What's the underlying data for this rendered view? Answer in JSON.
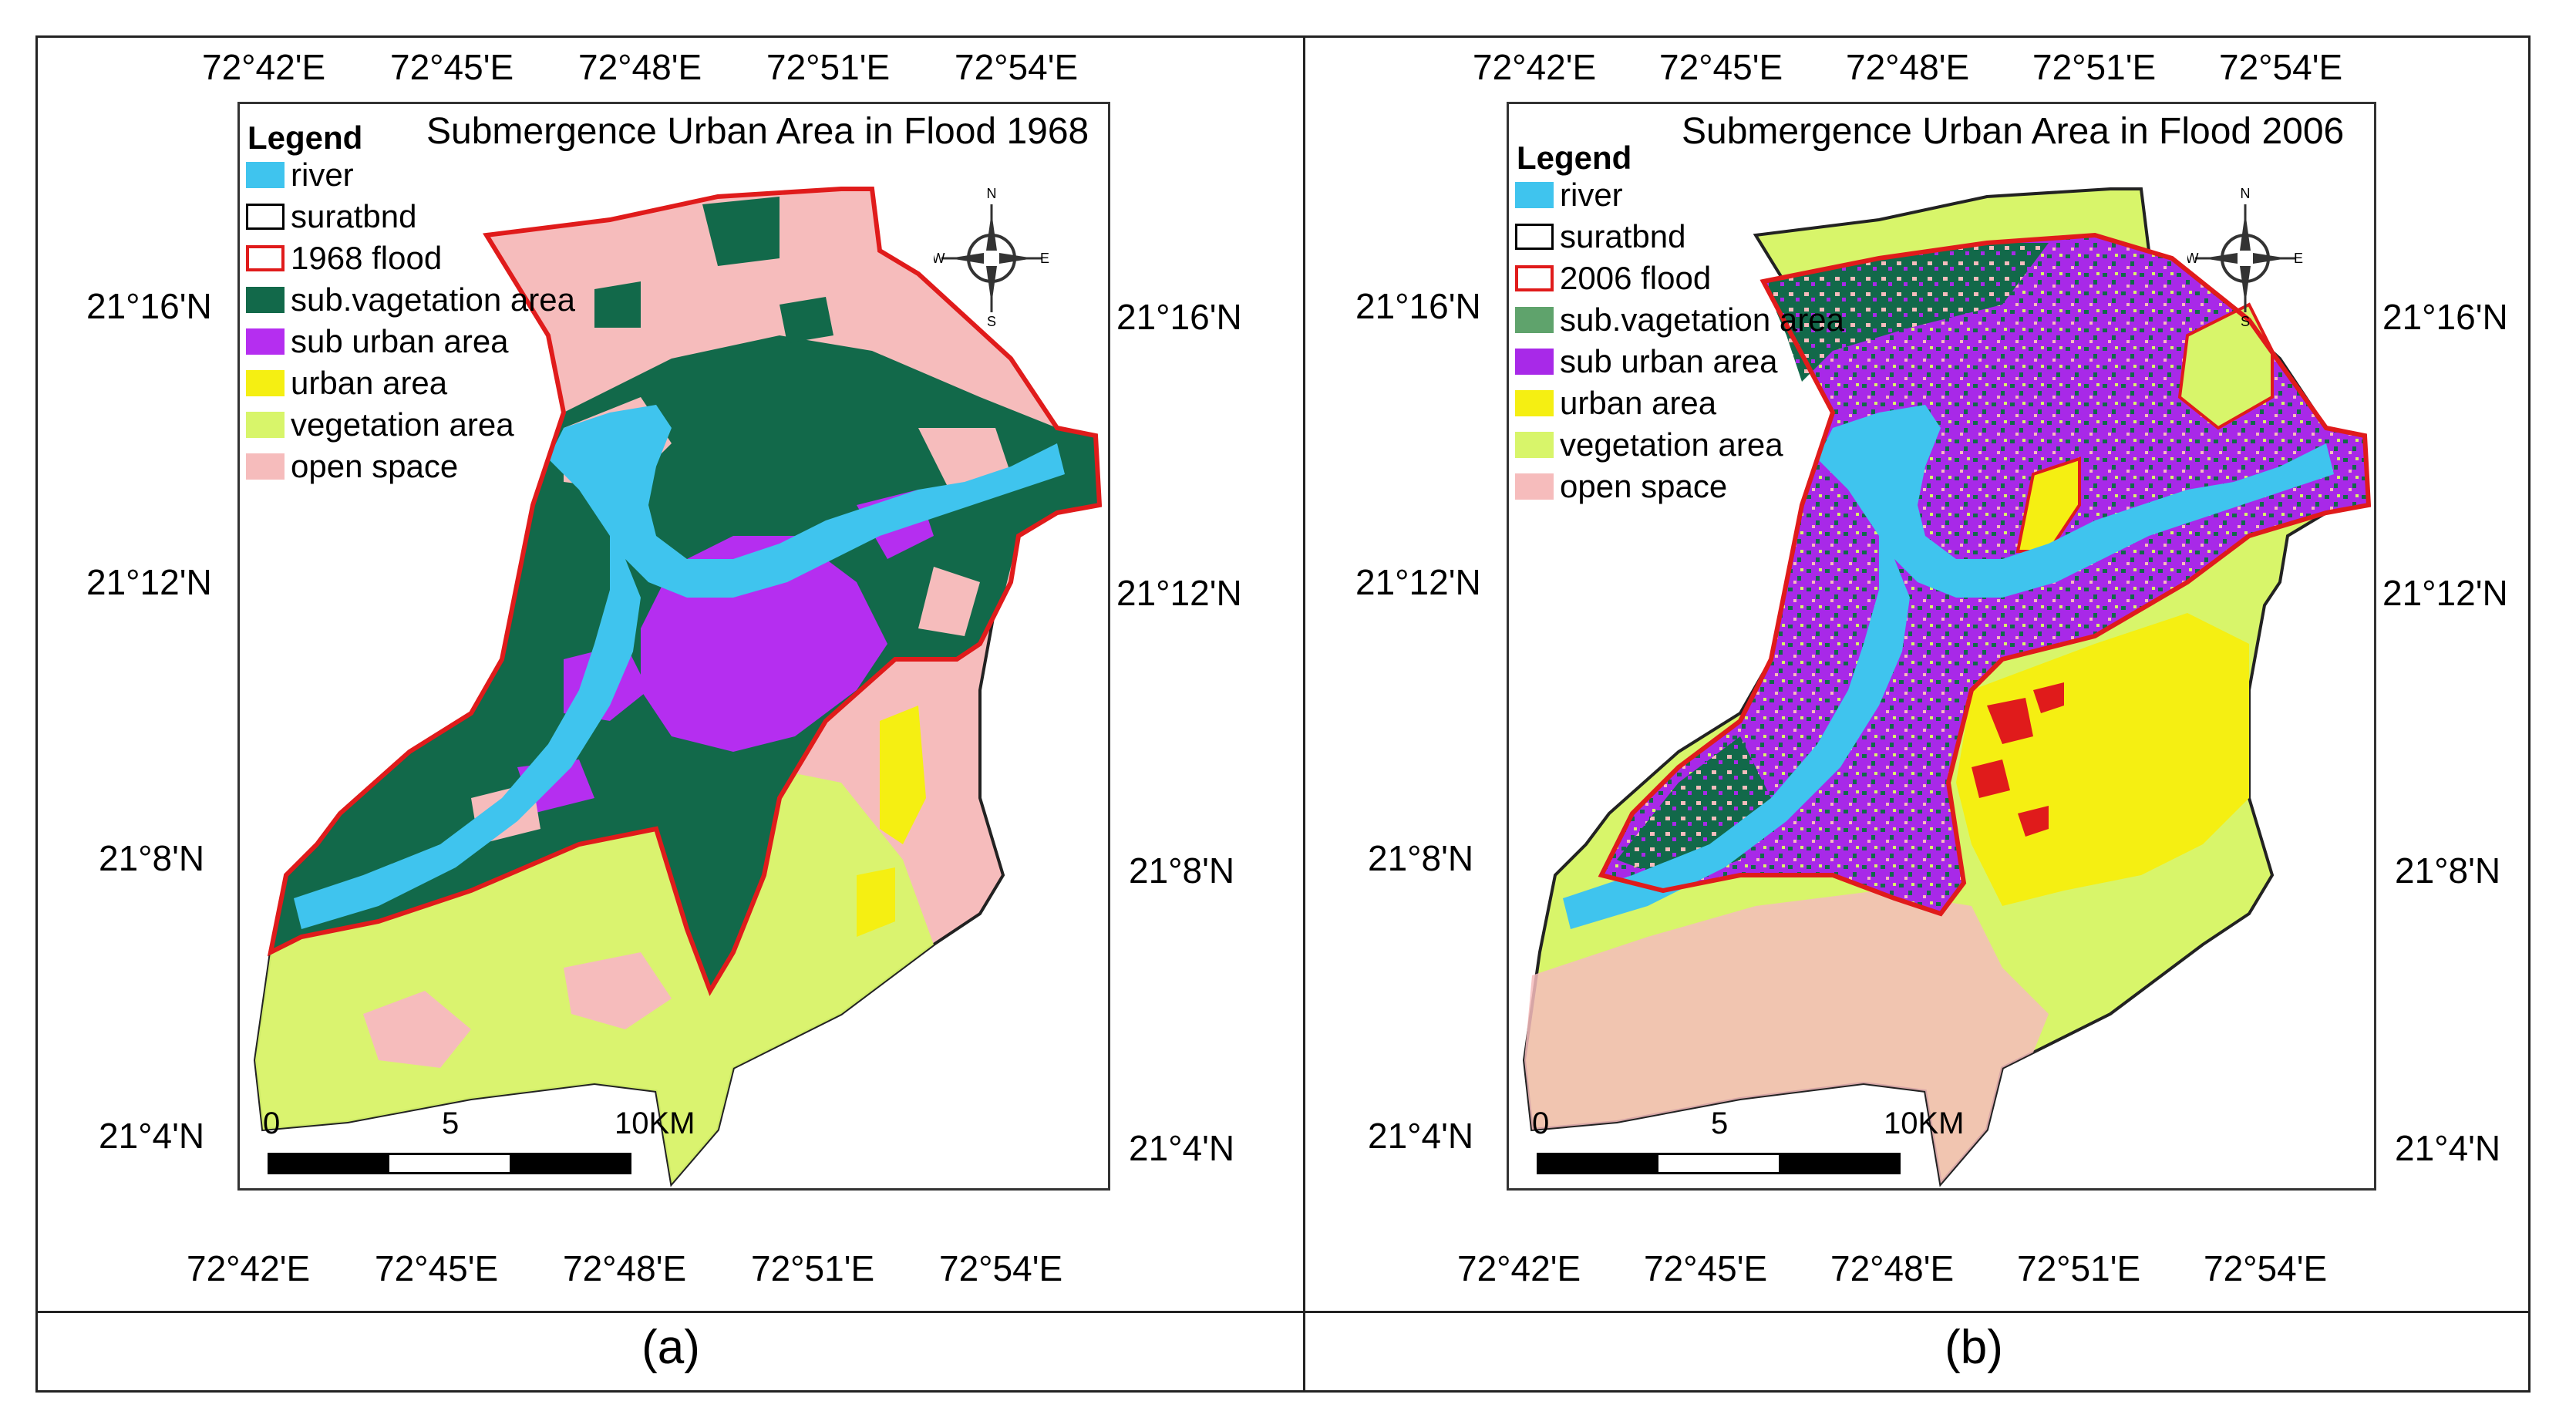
{
  "panels": [
    {
      "id": "a",
      "caption": "(a)",
      "title": "Submergence Urban Area in Flood 1968",
      "legend_title": "Legend",
      "legend": [
        {
          "label": "river",
          "color": "#3fc4ee",
          "style": "fill"
        },
        {
          "label": "suratbnd",
          "color": "#000000",
          "style": "outline"
        },
        {
          "label": "1968 flood",
          "color": "#e01b1b",
          "style": "outline"
        },
        {
          "label": "sub.vagetation area",
          "color": "#12694a",
          "style": "fill"
        },
        {
          "label": "sub urban area",
          "color": "#b52ef0",
          "style": "fill"
        },
        {
          "label": " urban area",
          "color": "#f5ef12",
          "style": "fill"
        },
        {
          "label": "vegetation area",
          "color": "#d8f56a",
          "style": "fill"
        },
        {
          "label": "open space",
          "color": "#f6bcbc",
          "style": "fill"
        }
      ],
      "lon_labels_top": [
        "72°42'E",
        "72°45'E",
        "72°48'E",
        "72°51'E",
        "72°54'E"
      ],
      "lon_labels_bottom": [
        "72°42'E",
        "72°45'E",
        "72°48'E",
        "72°51'E",
        "72°54'E"
      ],
      "lat_labels_left": [
        "21°16'N",
        "21°12'N",
        "21°8'N",
        "21°4'N"
      ],
      "lat_labels_right": [
        "21°16'N",
        "21°12'N",
        "21°8'N",
        "21°4'N"
      ],
      "scale": {
        "labels": [
          "0",
          "5",
          "10KM"
        ]
      },
      "compass": {
        "n": "N",
        "s": "S",
        "e": "E",
        "w": "W"
      }
    },
    {
      "id": "b",
      "caption": "(b)",
      "title": "Submergence Urban Area in Flood 2006",
      "legend_title": "Legend",
      "legend": [
        {
          "label": "river",
          "color": "#3fc4ee",
          "style": "fill"
        },
        {
          "label": "suratbnd",
          "color": "#000000",
          "style": "outline"
        },
        {
          "label": "2006 flood",
          "color": "#e01b1b",
          "style": "outline"
        },
        {
          "label": "sub.vagetation area",
          "color": "#5fa36c",
          "style": "fill"
        },
        {
          "label": "sub urban area",
          "color": "#a829e8",
          "style": "fill"
        },
        {
          "label": " urban area",
          "color": "#f5ef12",
          "style": "fill"
        },
        {
          "label": "vegetation area",
          "color": "#d8f56a",
          "style": "fill"
        },
        {
          "label": "open space",
          "color": "#f6bcbc",
          "style": "fill"
        }
      ],
      "lon_labels_top": [
        "72°42'E",
        "72°45'E",
        "72°48'E",
        "72°51'E",
        "72°54'E"
      ],
      "lon_labels_bottom": [
        "72°42'E",
        "72°45'E",
        "72°48'E",
        "72°51'E",
        "72°54'E"
      ],
      "lat_labels_left": [
        "21°16'N",
        "21°12'N",
        "21°8'N",
        "21°4'N"
      ],
      "lat_labels_right": [
        "21°16'N",
        "21°12'N",
        "21°8'N",
        "21°4'N"
      ],
      "scale": {
        "labels": [
          "0",
          "5",
          "10KM"
        ]
      },
      "compass": {
        "n": "N",
        "s": "S",
        "e": "E",
        "w": "W"
      }
    }
  ]
}
